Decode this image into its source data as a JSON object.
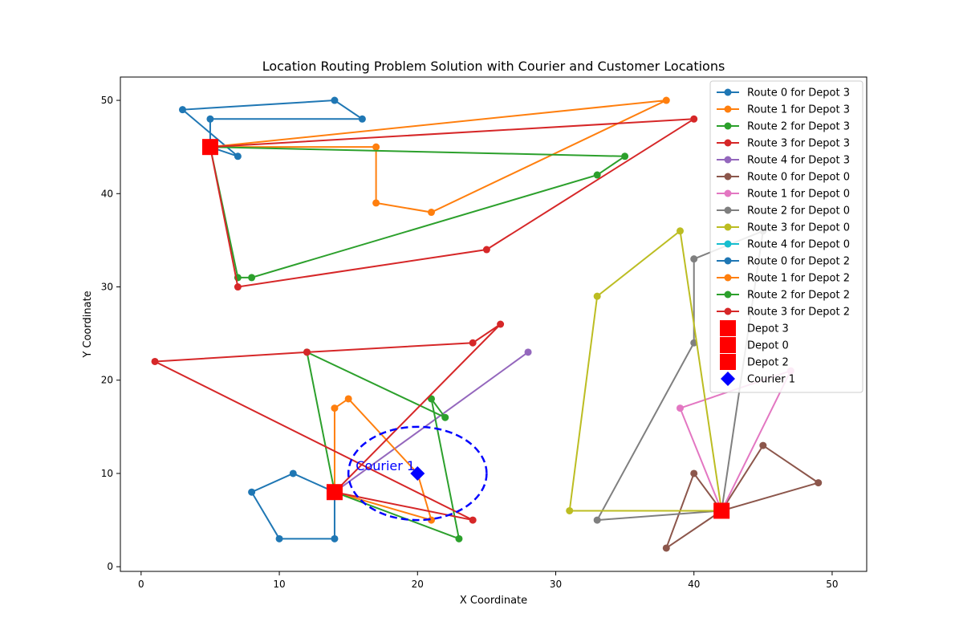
{
  "chart_data": {
    "type": "line",
    "title": "Location Routing Problem Solution with Courier and Customer Locations",
    "xlabel": "X Coordinate",
    "ylabel": "Y Coordinate",
    "xlim": [
      -1.5,
      52.5
    ],
    "ylim": [
      -0.5,
      52.5
    ],
    "xticks": [
      0,
      10,
      20,
      30,
      40,
      50
    ],
    "yticks": [
      0,
      10,
      20,
      30,
      40,
      50
    ],
    "grid": false,
    "legend_position": "top-right",
    "series": [
      {
        "name": "Route 0 for Depot 3",
        "color": "#1f77b4",
        "points": [
          [
            5,
            45
          ],
          [
            7,
            44
          ],
          [
            3,
            49
          ],
          [
            14,
            50
          ],
          [
            16,
            48
          ],
          [
            5,
            48
          ],
          [
            5,
            45
          ]
        ]
      },
      {
        "name": "Route 1 for Depot 3",
        "color": "#ff7f0e",
        "points": [
          [
            5,
            45
          ],
          [
            17,
            45
          ],
          [
            17,
            39
          ],
          [
            21,
            38
          ],
          [
            38,
            50
          ],
          [
            5,
            45
          ]
        ]
      },
      {
        "name": "Route 2 for Depot 3",
        "color": "#2ca02c",
        "points": [
          [
            5,
            45
          ],
          [
            35,
            44
          ],
          [
            33,
            42
          ],
          [
            8,
            31
          ],
          [
            7,
            31
          ],
          [
            5,
            45
          ]
        ]
      },
      {
        "name": "Route 3 for Depot 3",
        "color": "#d62728",
        "points": [
          [
            5,
            45
          ],
          [
            40,
            48
          ],
          [
            25,
            34
          ],
          [
            7,
            30
          ],
          [
            5,
            45
          ]
        ]
      },
      {
        "name": "Route 4 for Depot 3",
        "color": "#9467bd",
        "points": [
          [
            14,
            8
          ],
          [
            28,
            23
          ],
          [
            14,
            8
          ]
        ]
      },
      {
        "name": "Route 0 for Depot 0",
        "color": "#8c564b",
        "points": [
          [
            42,
            6
          ],
          [
            38,
            2
          ],
          [
            40,
            10
          ],
          [
            42,
            6
          ],
          [
            45,
            13
          ],
          [
            49,
            9
          ],
          [
            42,
            6
          ]
        ]
      },
      {
        "name": "Route 1 for Depot 0",
        "color": "#e377c2",
        "points": [
          [
            42,
            6
          ],
          [
            39,
            17
          ],
          [
            47,
            21
          ],
          [
            42,
            6
          ]
        ]
      },
      {
        "name": "Route 2 for Depot 0",
        "color": "#7f7f7f",
        "points": [
          [
            42,
            6
          ],
          [
            33,
            5
          ],
          [
            40,
            24
          ],
          [
            40,
            33
          ],
          [
            45,
            36
          ],
          [
            42,
            6
          ]
        ]
      },
      {
        "name": "Route 3 for Depot 0",
        "color": "#bcbd22",
        "points": [
          [
            42,
            6
          ],
          [
            31,
            6
          ],
          [
            33,
            29
          ],
          [
            39,
            36
          ],
          [
            42,
            6
          ]
        ]
      },
      {
        "name": "Route 4 for Depot 0",
        "color": "#17becf",
        "points": [
          [
            42,
            6
          ],
          [
            42,
            6
          ]
        ]
      },
      {
        "name": "Route 0 for Depot 2",
        "color": "#1f77b4",
        "points": [
          [
            14,
            8
          ],
          [
            11,
            10
          ],
          [
            8,
            8
          ],
          [
            10,
            3
          ],
          [
            14,
            3
          ],
          [
            14,
            8
          ]
        ]
      },
      {
        "name": "Route 1 for Depot 2",
        "color": "#ff7f0e",
        "points": [
          [
            14,
            8
          ],
          [
            14,
            17
          ],
          [
            15,
            18
          ],
          [
            20,
            10
          ],
          [
            21,
            5
          ],
          [
            14,
            8
          ]
        ]
      },
      {
        "name": "Route 2 for Depot 2",
        "color": "#2ca02c",
        "points": [
          [
            14,
            8
          ],
          [
            12,
            23
          ],
          [
            22,
            16
          ],
          [
            21,
            18
          ],
          [
            23,
            3
          ],
          [
            14,
            8
          ]
        ]
      },
      {
        "name": "Route 3 for Depot 2",
        "color": "#d62728",
        "points": [
          [
            14,
            8
          ],
          [
            26,
            26
          ],
          [
            24,
            24
          ],
          [
            12,
            23
          ],
          [
            1,
            22
          ],
          [
            24,
            5
          ],
          [
            14,
            8
          ]
        ]
      }
    ],
    "depots": [
      {
        "name": "Depot 3",
        "color": "#ff0000",
        "x": 5,
        "y": 45
      },
      {
        "name": "Depot 0",
        "color": "#ff0000",
        "x": 42,
        "y": 6
      },
      {
        "name": "Depot 2",
        "color": "#ff0000",
        "x": 14,
        "y": 8
      }
    ],
    "courier": {
      "name": "Courier 1",
      "label": "Courier 1",
      "color": "#0000ff",
      "x": 20,
      "y": 10,
      "radius": 5
    }
  }
}
